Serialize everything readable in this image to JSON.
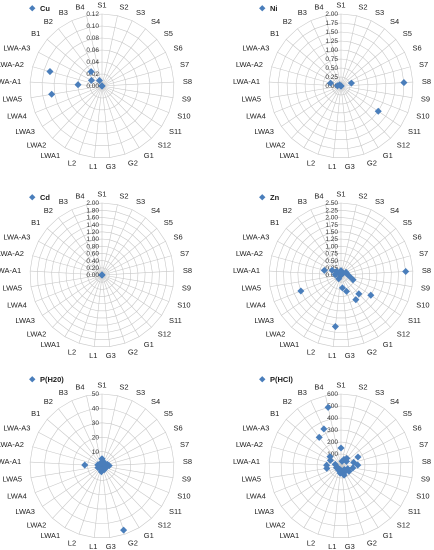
{
  "categories": [
    "S1",
    "S2",
    "S3",
    "S4",
    "S5",
    "S6",
    "S7",
    "S8",
    "S9",
    "S10",
    "S11",
    "S12",
    "G1",
    "G2",
    "G3",
    "L1",
    "L2",
    "LWA1",
    "LWA2",
    "LWA3",
    "LWA4",
    "LWA5",
    "LWA-A1",
    "LWA-A2",
    "LWA-A3",
    "B1",
    "B2",
    "B3",
    "B4"
  ],
  "marker_color": "#4a7ebb",
  "chart_data": [
    {
      "type": "radar",
      "series_name": "Cu",
      "ticks": [
        "0.00",
        "0.02",
        "0.04",
        "0.06",
        "0.08",
        "0.10",
        "0.12"
      ],
      "rmax": 0.12,
      "values": [
        0,
        0,
        0,
        0,
        0,
        0,
        0,
        0,
        0,
        0,
        0,
        0,
        0,
        0,
        0,
        0,
        0,
        0,
        0,
        0,
        0,
        0.085,
        0.04,
        0.09,
        0.02,
        0,
        0.03,
        0.01,
        0
      ]
    },
    {
      "type": "radar",
      "series_name": "Ni",
      "ticks": [
        "0.00",
        "0.25",
        "0.50",
        "0.75",
        "1.00",
        "1.25",
        "1.50",
        "1.75",
        "2.00"
      ],
      "rmax": 2.0,
      "values": [
        0,
        0,
        0,
        0,
        0,
        0,
        0.3,
        1.75,
        0,
        0,
        1.25,
        0,
        0,
        0,
        0,
        0,
        0,
        0,
        0,
        0,
        0,
        0,
        0.1,
        0.3,
        0,
        0.05,
        0,
        0,
        0
      ]
    },
    {
      "type": "radar",
      "series_name": "Cd",
      "ticks": [
        "0.00",
        "0.20",
        "0.40",
        "0.60",
        "0.80",
        "1.00",
        "1.20",
        "1.40",
        "1.60",
        "1.80",
        "2.00"
      ],
      "rmax": 2.0,
      "values": [
        0,
        0,
        0,
        0,
        0,
        0,
        0,
        0,
        0,
        0,
        0,
        0,
        0,
        0,
        0,
        0,
        0,
        0,
        0,
        0,
        0,
        0,
        0,
        0,
        0,
        0,
        0,
        0,
        0
      ]
    },
    {
      "type": "radar",
      "series_name": "Zn",
      "ticks": [
        "0.00",
        "0.25",
        "0.50",
        "0.75",
        "1.00",
        "1.25",
        "1.50",
        "1.75",
        "2.00",
        "2.25",
        "2.50"
      ],
      "rmax": 2.5,
      "values": [
        0.15,
        0.1,
        0.1,
        0.1,
        0.1,
        0.2,
        0.2,
        2.25,
        0.3,
        0.45,
        1.25,
        0.9,
        1.0,
        0.6,
        0.45,
        1.8,
        0,
        0.15,
        0,
        0,
        1.5,
        0,
        0.2,
        0.6,
        0.35,
        0.2,
        0.1,
        0.05,
        0.05
      ]
    },
    {
      "type": "radar",
      "series_name": "P(H20)",
      "ticks": [
        "0",
        "10",
        "20",
        "30",
        "40",
        "50"
      ],
      "rmax": 50,
      "values": [
        5,
        3,
        3,
        2,
        2,
        2,
        4,
        5,
        3,
        3,
        2,
        2,
        3,
        47,
        2,
        4,
        2,
        2,
        2,
        2,
        3,
        2,
        12,
        3,
        2,
        2,
        2,
        2,
        2
      ]
    },
    {
      "type": "radar",
      "series_name": "P(HCl)",
      "ticks": [
        "0",
        "100",
        "200",
        "300",
        "400",
        "500",
        "600"
      ],
      "rmax": 600,
      "values": [
        150,
        40,
        60,
        80,
        60,
        160,
        110,
        140,
        100,
        60,
        80,
        40,
        60,
        80,
        40,
        60,
        30,
        40,
        30,
        30,
        40,
        120,
        120,
        50,
        100,
        120,
        300,
        340,
        500
      ]
    }
  ]
}
